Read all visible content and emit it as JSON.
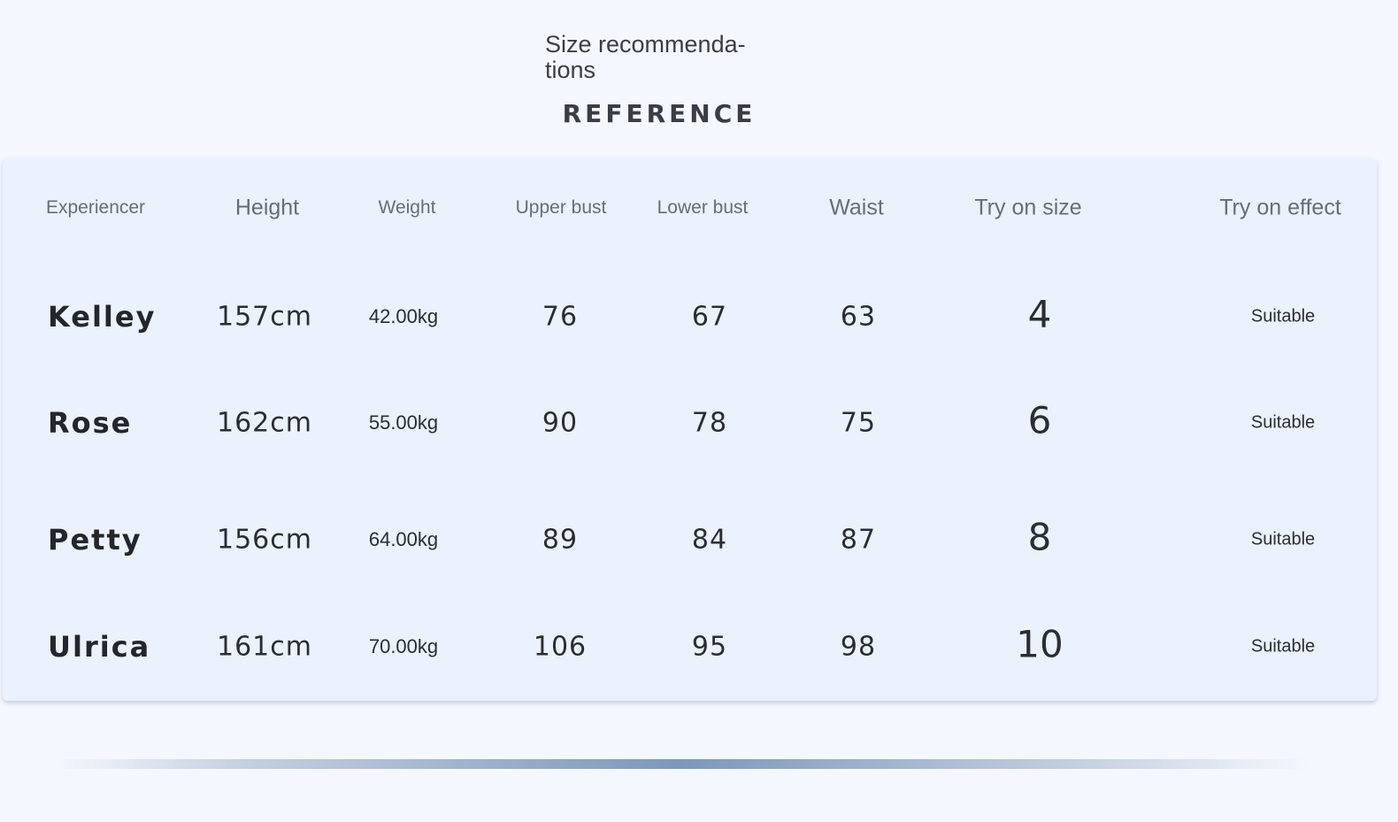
{
  "title": "Size recommenda-\ntions",
  "subtitle": "REFERENCE",
  "headers": [
    "Experiencer",
    "Height",
    "Weight",
    "Upper bust",
    "Lower bust",
    "Waist",
    "Try on size",
    "Try on effect"
  ],
  "rows": [
    {
      "name": "Kelley",
      "height": "157cm",
      "weight": "42.00kg",
      "upper_bust": "76",
      "lower_bust": "67",
      "waist": "63",
      "size": "4",
      "effect": "Suitable"
    },
    {
      "name": "Rose",
      "height": "162cm",
      "weight": "55.00kg",
      "upper_bust": "90",
      "lower_bust": "78",
      "waist": "75",
      "size": "6",
      "effect": "Suitable"
    },
    {
      "name": "Petty",
      "height": "156cm",
      "weight": "64.00kg",
      "upper_bust": "89",
      "lower_bust": "84",
      "waist": "87",
      "size": "8",
      "effect": "Suitable"
    },
    {
      "name": "Ulrica",
      "height": "161cm",
      "weight": "70.00kg",
      "upper_bust": "106",
      "lower_bust": "95",
      "waist": "98",
      "size": "10",
      "effect": "Suitable"
    }
  ],
  "colors": {
    "background": "#f5f7fe",
    "card": "#ebf2fd",
    "divider_accent": "#7b98bc"
  }
}
